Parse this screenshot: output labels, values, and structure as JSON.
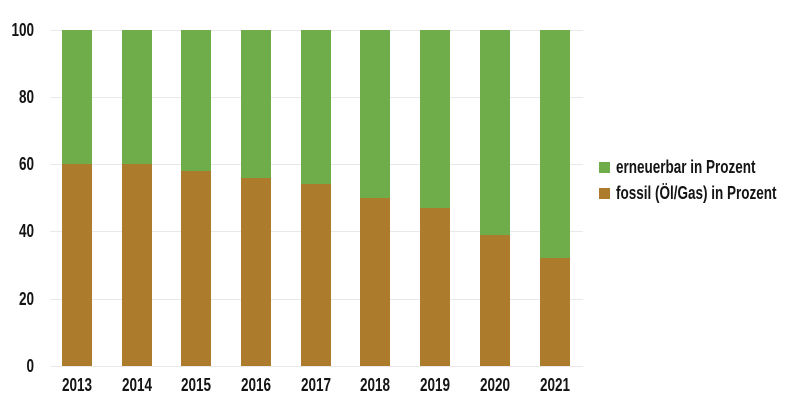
{
  "chart_data": {
    "type": "bar",
    "stacked": true,
    "title": "",
    "xlabel": "",
    "ylabel": "",
    "categories": [
      "2013",
      "2014",
      "2015",
      "2016",
      "2017",
      "2018",
      "2019",
      "2020",
      "2021"
    ],
    "series": [
      {
        "name": "fossil (Öl/Gas) in Prozent",
        "color": "#ac7b2c",
        "values": [
          60,
          60,
          58,
          56,
          54,
          50,
          47,
          39,
          32
        ]
      },
      {
        "name": "erneuerbar in Prozent",
        "color": "#6fad4b",
        "values": [
          40,
          40,
          42,
          44,
          46,
          50,
          53,
          61,
          68
        ]
      }
    ],
    "ylim": [
      0,
      100
    ],
    "yticks": [
      0,
      20,
      40,
      60,
      80,
      100
    ],
    "grid": true,
    "legend_position": "right"
  },
  "legend": {
    "items": [
      {
        "label": "erneuerbar in Prozent",
        "color": "#6fad4b"
      },
      {
        "label": "fossil (Öl/Gas) in Prozent",
        "color": "#ac7b2c"
      }
    ]
  },
  "colors": {
    "background": "#ffffff",
    "gridline": "#e9e9e9",
    "text": "#141414",
    "renewable": "#6fad4b",
    "fossil": "#ac7b2c"
  }
}
